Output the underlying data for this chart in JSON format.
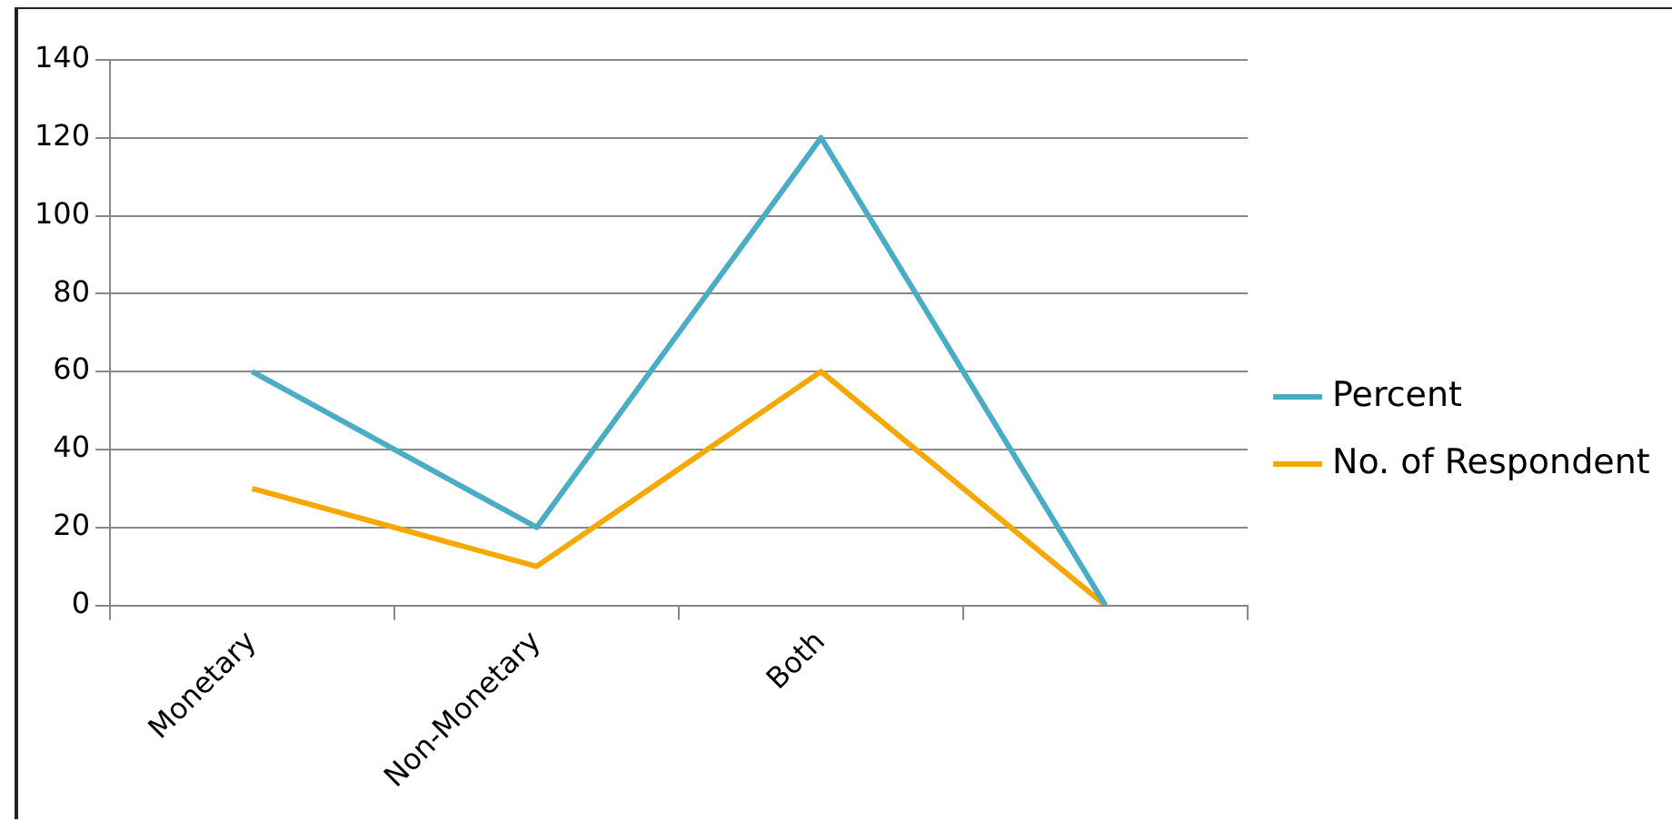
{
  "chart_data": {
    "type": "line",
    "categories": [
      "Monetary",
      "Non-Monetary",
      "Both",
      null
    ],
    "series": [
      {
        "name": "Percent",
        "color": "#4bacc6",
        "values": [
          60,
          20,
          120,
          0
        ]
      },
      {
        "name": "No. of Respondent",
        "color": "#f5a800",
        "values": [
          30,
          10,
          60,
          0
        ]
      }
    ],
    "ylim": [
      0,
      140
    ],
    "yticks": [
      0,
      20,
      40,
      60,
      80,
      100,
      120,
      140
    ],
    "grid": "y",
    "legend": "right",
    "marker": "none",
    "line_style": "solid"
  }
}
